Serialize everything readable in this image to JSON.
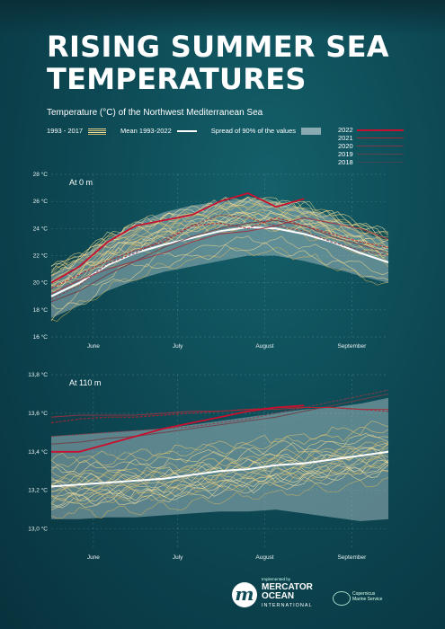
{
  "header": {
    "title_line1": "RISING SUMMER SEA",
    "title_line2": "TEMPERATURES",
    "subtitle": "Temperature (°C) of the Northwest Mediterranean Sea"
  },
  "legend": {
    "historic": "1993 - 2017",
    "mean": "Mean 1993-2022",
    "spread": "Spread of 90% of the values",
    "years": [
      {
        "label": "2022",
        "color": "#c8102e"
      },
      {
        "label": "2021",
        "color": "#b8202e"
      },
      {
        "label": "2020",
        "color": "#a33040"
      },
      {
        "label": "2019",
        "color": "#8a3c48"
      },
      {
        "label": "2018",
        "color": "#6e4048"
      }
    ]
  },
  "colors": {
    "historic_line": "#e7d28a",
    "mean_line": "#ffffff",
    "spread_band": "#9fb8bd"
  },
  "chart_data": [
    {
      "type": "line",
      "panel_label": "At 0 m",
      "ylabel": "°C",
      "ylim": [
        16,
        28
      ],
      "yticks": [
        "16 °C",
        "18 °C",
        "20 °C",
        "22 °C",
        "24 °C",
        "26 °C",
        "28 °C"
      ],
      "ytick_values": [
        16,
        18,
        20,
        22,
        24,
        26,
        28
      ],
      "xlim": [
        0,
        120
      ],
      "xticks": [
        "June",
        "July",
        "August",
        "September"
      ],
      "xtick_positions": [
        15,
        45,
        76,
        107
      ],
      "x": [
        0,
        10,
        20,
        30,
        40,
        50,
        60,
        70,
        80,
        90,
        100,
        110,
        120
      ],
      "mean": [
        19.0,
        20.0,
        21.3,
        22.2,
        22.8,
        23.3,
        23.8,
        24.1,
        24.0,
        23.6,
        23.0,
        22.2,
        21.5
      ],
      "spread_upper": [
        20.6,
        21.8,
        23.2,
        24.4,
        25.2,
        25.7,
        26.0,
        26.2,
        26.0,
        25.5,
        24.8,
        23.8,
        23.0
      ],
      "spread_lower": [
        17.4,
        18.3,
        19.4,
        20.2,
        20.8,
        21.2,
        21.6,
        22.0,
        22.0,
        21.6,
        21.1,
        20.5,
        20.0
      ],
      "series": [
        {
          "name": "2022",
          "values": [
            20.0,
            21.2,
            23.0,
            24.2,
            24.6,
            25.0,
            26.0,
            26.6,
            25.6,
            26.2,
            null,
            null,
            null
          ]
        },
        {
          "name": "2021",
          "values": [
            19.6,
            20.6,
            21.6,
            22.4,
            23.0,
            24.2,
            24.4,
            24.0,
            24.8,
            24.2,
            23.6,
            23.0,
            22.6
          ]
        },
        {
          "name": "2020",
          "values": [
            19.2,
            20.2,
            21.0,
            21.6,
            22.2,
            23.0,
            23.6,
            23.8,
            24.2,
            24.8,
            24.4,
            24.0,
            23.2
          ]
        },
        {
          "name": "2019",
          "values": [
            18.8,
            19.8,
            21.4,
            22.2,
            23.2,
            24.2,
            25.0,
            24.8,
            24.2,
            23.8,
            23.0,
            22.4,
            22.0
          ]
        },
        {
          "name": "2018",
          "values": [
            18.6,
            19.4,
            20.6,
            21.6,
            22.6,
            23.4,
            24.0,
            24.4,
            24.6,
            24.2,
            23.4,
            22.8,
            22.2
          ]
        }
      ]
    },
    {
      "type": "line",
      "panel_label": "At 110 m",
      "ylabel": "°C",
      "ylim": [
        12.9,
        13.8
      ],
      "yticks": [
        "13,0 °C",
        "13,2 °C",
        "13,4 °C",
        "13,6 °C",
        "13,8 °C"
      ],
      "ytick_values": [
        13.0,
        13.2,
        13.4,
        13.6,
        13.8
      ],
      "xlim": [
        0,
        120
      ],
      "xticks": [
        "June",
        "July",
        "August",
        "September"
      ],
      "xtick_positions": [
        15,
        45,
        76,
        107
      ],
      "x": [
        0,
        10,
        20,
        30,
        40,
        50,
        60,
        70,
        80,
        90,
        100,
        110,
        120
      ],
      "mean": [
        13.22,
        13.23,
        13.24,
        13.25,
        13.26,
        13.28,
        13.3,
        13.31,
        13.33,
        13.34,
        13.36,
        13.38,
        13.4
      ],
      "spread_upper": [
        13.48,
        13.49,
        13.5,
        13.51,
        13.52,
        13.54,
        13.56,
        13.58,
        13.6,
        13.62,
        13.63,
        13.65,
        13.68
      ],
      "spread_lower": [
        13.05,
        13.05,
        13.06,
        13.06,
        13.07,
        13.08,
        13.09,
        13.09,
        13.1,
        13.08,
        13.06,
        13.04,
        13.05
      ],
      "series": [
        {
          "name": "2022",
          "values": [
            13.4,
            13.4,
            13.44,
            13.48,
            13.52,
            13.55,
            13.58,
            13.61,
            13.63,
            13.64,
            null,
            null,
            null
          ]
        },
        {
          "name": "2021",
          "values": [
            13.55,
            13.57,
            13.58,
            13.58,
            13.59,
            13.6,
            13.61,
            13.62,
            13.63,
            13.63,
            13.63,
            13.62,
            13.61
          ]
        },
        {
          "name": "2020",
          "values": [
            13.58,
            13.59,
            13.59,
            13.59,
            13.6,
            13.61,
            13.61,
            13.62,
            13.62,
            13.63,
            13.63,
            13.62,
            13.62
          ]
        },
        {
          "name": "2019",
          "values": [
            13.48,
            13.49,
            13.5,
            13.51,
            13.52,
            13.53,
            13.55,
            13.57,
            13.6,
            13.63,
            13.66,
            13.69,
            13.72
          ]
        },
        {
          "name": "2018",
          "values": [
            13.44,
            13.45,
            13.47,
            13.48,
            13.5,
            13.52,
            13.54,
            13.56,
            13.58,
            13.61,
            13.64,
            13.67,
            13.7
          ]
        }
      ]
    }
  ],
  "footer": {
    "implemented_by": "Implemented by",
    "org_line1": "MERCATOR",
    "org_line2": "OCEAN",
    "org_line3": "INTERNATIONAL",
    "service_line1": "Copernicus",
    "service_line2": "Marine Service"
  }
}
